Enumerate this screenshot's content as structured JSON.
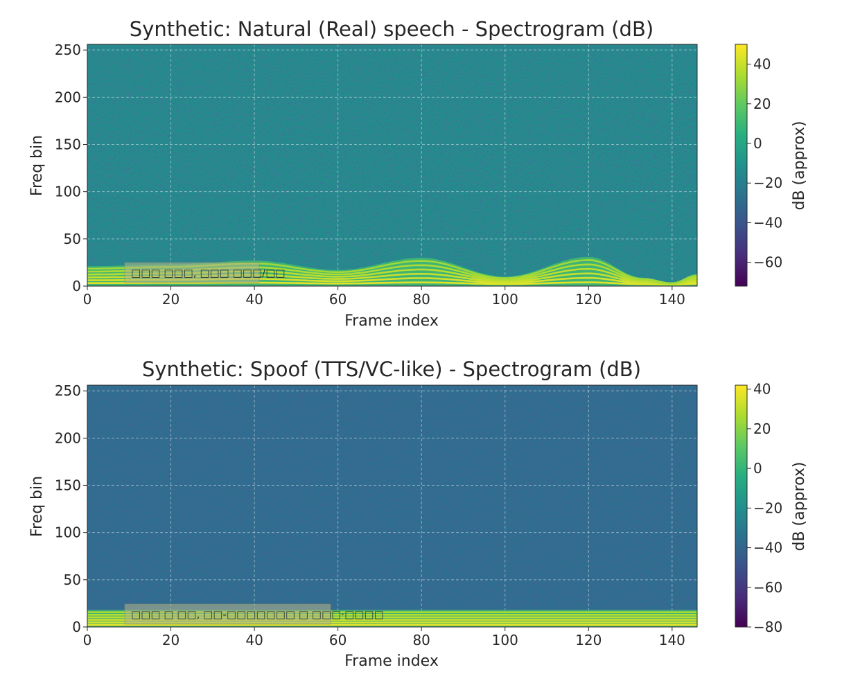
{
  "chart_data": [
    {
      "type": "heatmap",
      "title": "Synthetic: Natural (Real) speech - Spectrogram (dB)",
      "xlabel": "Frame index",
      "ylabel": "Freq bin",
      "xlim": [
        0,
        146
      ],
      "ylim": [
        0,
        256
      ],
      "xticks": [
        0,
        20,
        40,
        60,
        80,
        100,
        120,
        140
      ],
      "yticks": [
        0,
        50,
        100,
        150,
        200,
        250
      ],
      "grid": true,
      "colormap": "viridis",
      "colorbar": {
        "label": "dB (approx)",
        "range": [
          -72,
          50
        ],
        "ticks": [
          -60,
          -40,
          -20,
          0,
          20,
          40
        ]
      },
      "background_db": -12,
      "harmonics": {
        "count": 6,
        "spacing_bins": 3.5,
        "base_bin": 4,
        "level_db": 45
      },
      "pitch_contour": {
        "frame": [
          0,
          20,
          40,
          60,
          80,
          100,
          120,
          133,
          140,
          146
        ],
        "bin": [
          20,
          22,
          26,
          16,
          29,
          9,
          30,
          8,
          3,
          12
        ]
      },
      "annotation": "□□□ □□□, □□□ □□□/□□"
    },
    {
      "type": "heatmap",
      "title": "Synthetic: Spoof (TTS/VC-like) - Spectrogram (dB)",
      "xlabel": "Frame index",
      "ylabel": "Freq bin",
      "xlim": [
        0,
        146
      ],
      "ylim": [
        0,
        256
      ],
      "xticks": [
        0,
        20,
        40,
        60,
        80,
        100,
        120,
        140
      ],
      "yticks": [
        0,
        50,
        100,
        150,
        200,
        250
      ],
      "grid": true,
      "colormap": "viridis",
      "colorbar": {
        "label": "dB (approx)",
        "range": [
          -80,
          42
        ],
        "ticks": [
          -80,
          -60,
          -40,
          -20,
          0,
          20,
          40
        ]
      },
      "background_db": -35,
      "harmonics": {
        "count": 6,
        "spacing_bins": 3,
        "base_bin": 2,
        "level_db": 38
      },
      "pitch_contour": {
        "frame": [
          0,
          146
        ],
        "bin": [
          17,
          17
        ]
      },
      "annotation": "□□□ □ □□, □□-□□□□□□□ □ □□□·□□□□"
    }
  ]
}
